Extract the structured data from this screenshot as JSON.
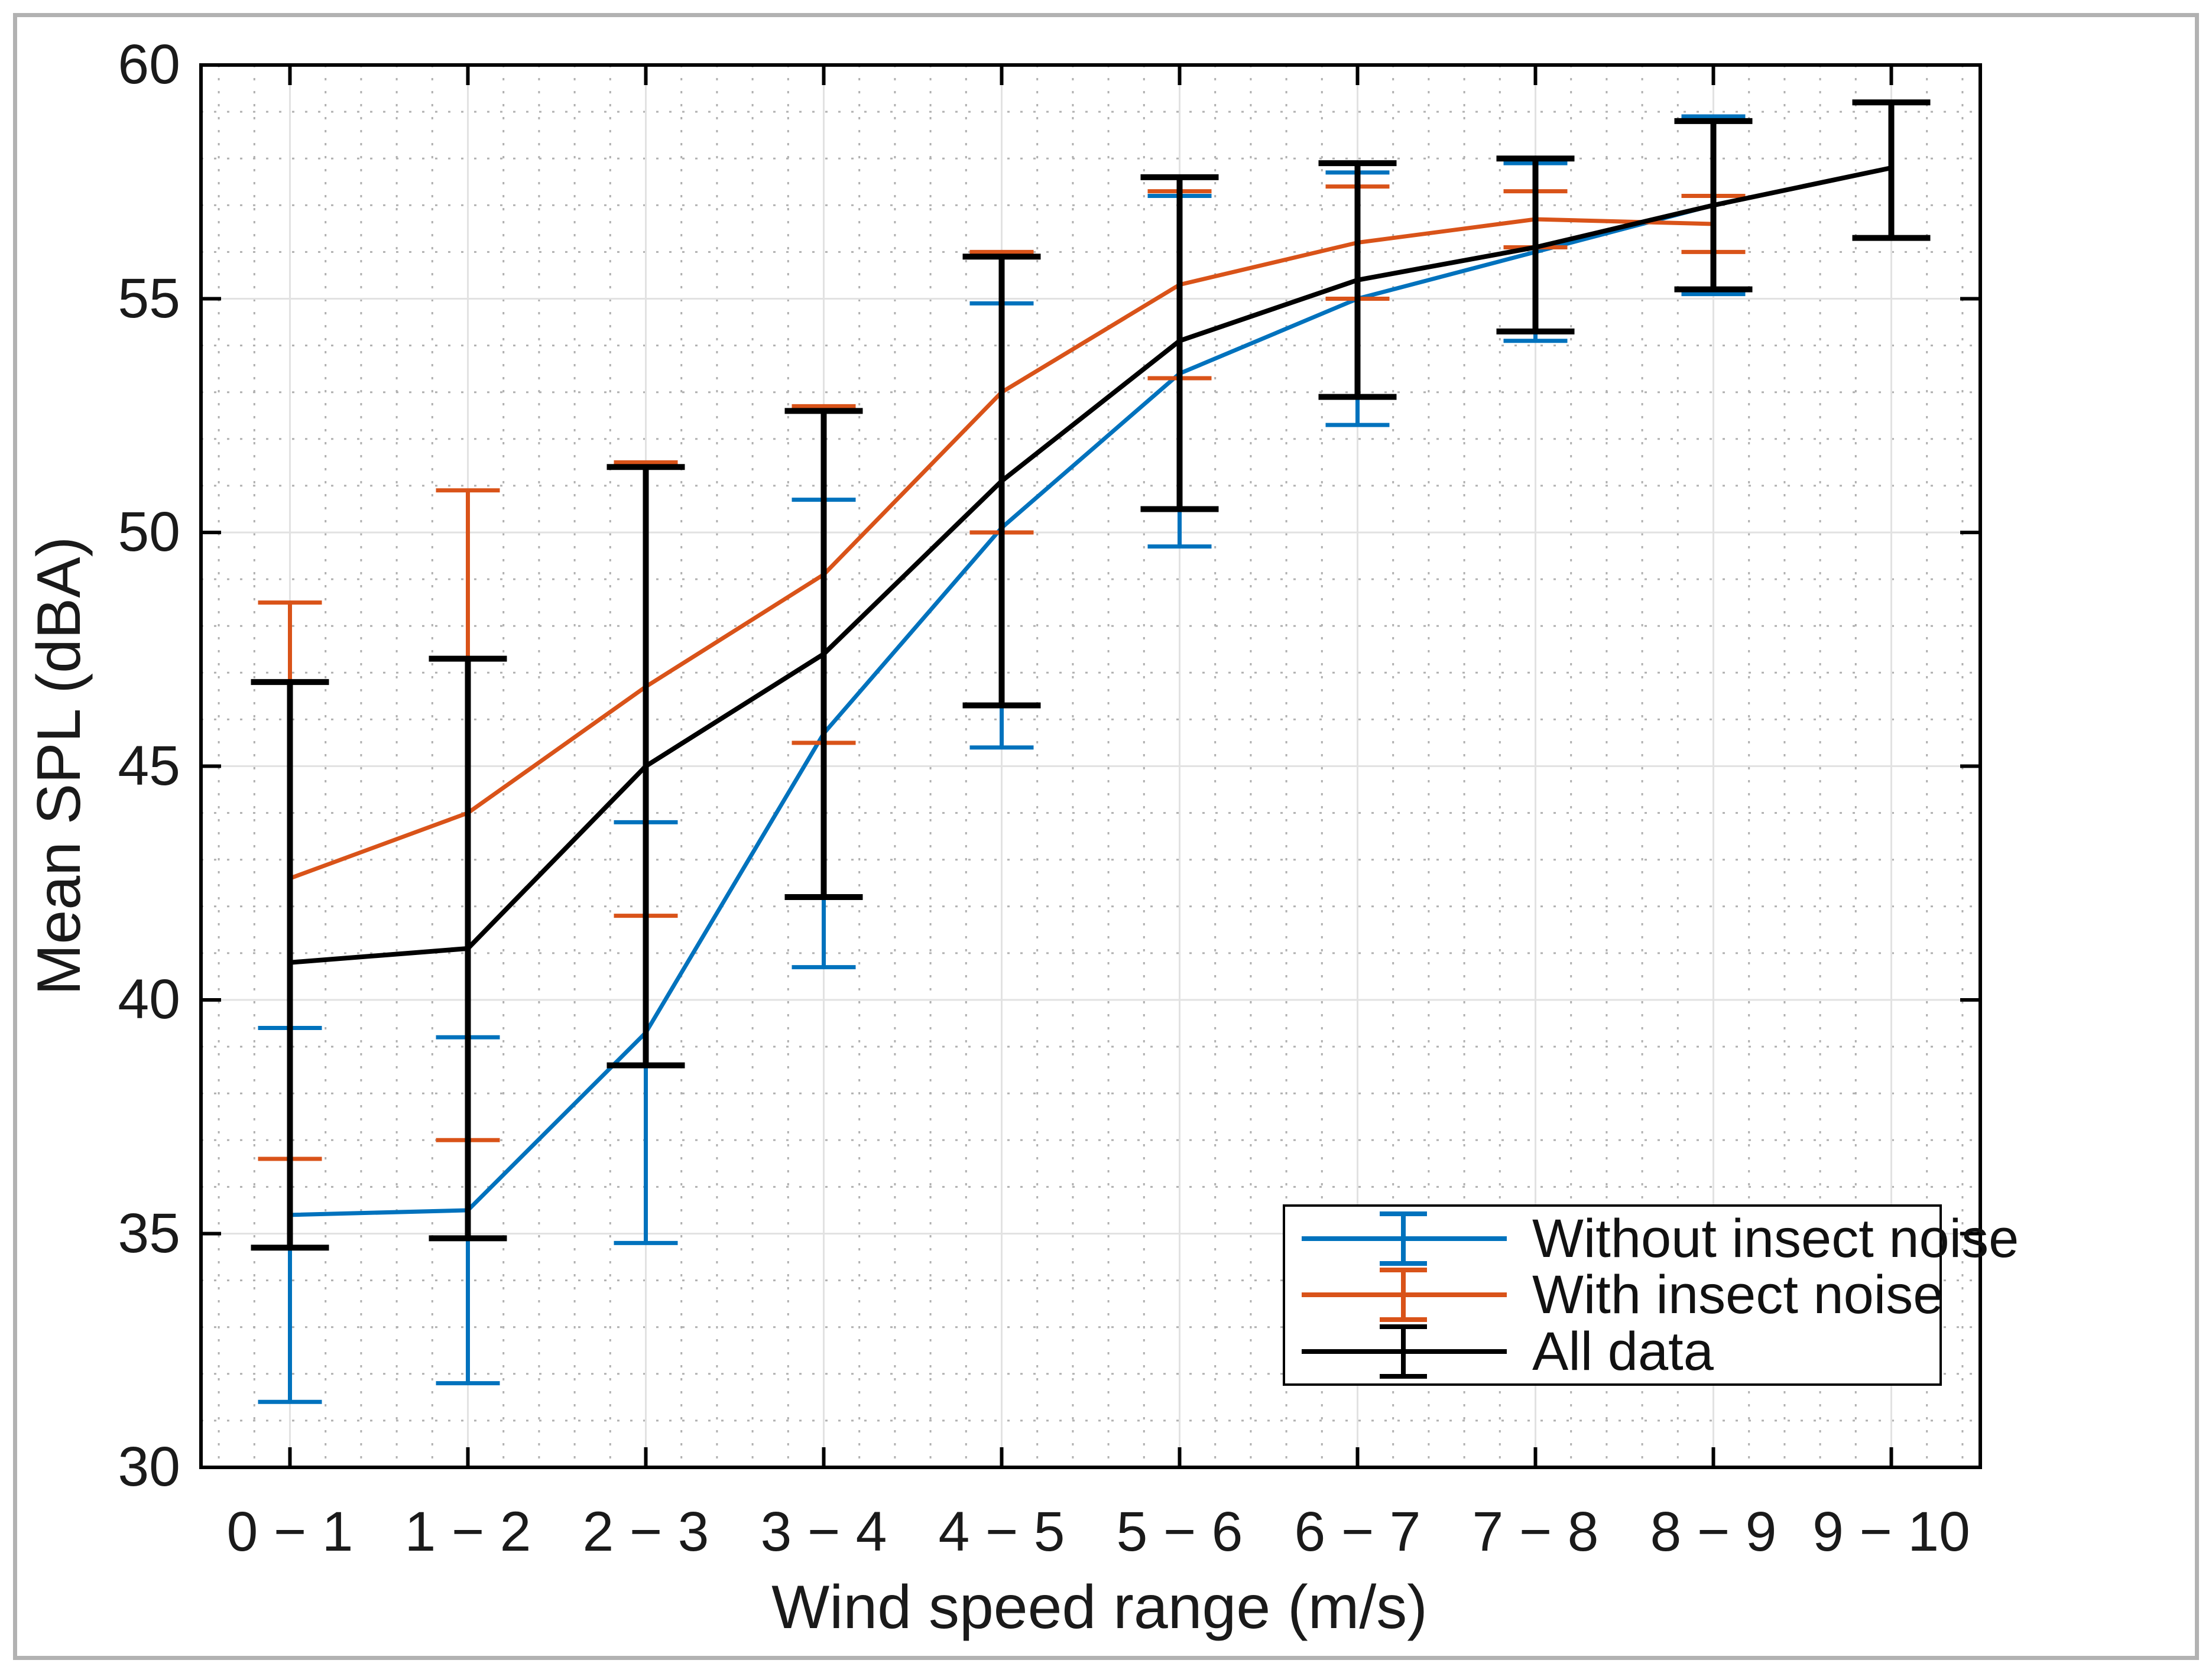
{
  "figure": {
    "frame_color": "#b2b2b2",
    "background": "#ffffff",
    "axis_color": "#000000",
    "text_color": "#1a1a1a",
    "major_grid_color": "#e2e2e2",
    "minor_grid_color": "#b0b0b0"
  },
  "chart_data": {
    "type": "line",
    "title": "",
    "xlabel": "Wind speed range (m/s)",
    "ylabel": "Mean SPL (dBA)",
    "ylim": [
      30,
      60
    ],
    "y_ticks": [
      30,
      35,
      40,
      45,
      50,
      55,
      60
    ],
    "categories": [
      "0 − 1",
      "1 − 2",
      "2 − 3",
      "3 − 4",
      "4 − 5",
      "5 − 6",
      "6 − 7",
      "7 − 8",
      "8 − 9",
      "9 − 10"
    ],
    "grid": {
      "major": true,
      "minor_dotted": true,
      "y_minor_step": 1,
      "x_minor_per_interval": 5
    },
    "legend_position": "inside-lower-right",
    "series": [
      {
        "name": "Without insect noise",
        "color": "#0072BD",
        "means": [
          35.4,
          35.5,
          39.3,
          45.7,
          50.1,
          53.4,
          55.0,
          56.0,
          57.0,
          null
        ],
        "err_lo": [
          31.4,
          31.8,
          34.8,
          40.7,
          45.4,
          49.7,
          52.3,
          54.1,
          55.1,
          null
        ],
        "err_hi": [
          39.4,
          39.2,
          43.8,
          50.7,
          54.9,
          57.2,
          57.7,
          57.9,
          58.9,
          null
        ]
      },
      {
        "name": "With insect noise",
        "color": "#D95319",
        "means": [
          42.6,
          44.0,
          46.7,
          49.1,
          53.0,
          55.3,
          56.2,
          56.7,
          56.6,
          null
        ],
        "err_lo": [
          36.6,
          37.0,
          41.8,
          45.5,
          50.0,
          53.3,
          55.0,
          56.1,
          56.0,
          null
        ],
        "err_hi": [
          48.5,
          50.9,
          51.5,
          52.7,
          56.0,
          57.3,
          57.4,
          57.3,
          57.2,
          null
        ]
      },
      {
        "name": "All data",
        "color": "#000000",
        "means": [
          40.8,
          41.1,
          45.0,
          47.4,
          51.1,
          54.1,
          55.4,
          56.1,
          57.0,
          57.8
        ],
        "err_lo": [
          34.7,
          34.9,
          38.6,
          42.2,
          46.3,
          50.5,
          52.9,
          54.3,
          55.2,
          56.3
        ],
        "err_hi": [
          46.8,
          47.3,
          51.4,
          52.6,
          55.9,
          57.6,
          57.9,
          58.0,
          58.8,
          59.2
        ]
      }
    ]
  }
}
